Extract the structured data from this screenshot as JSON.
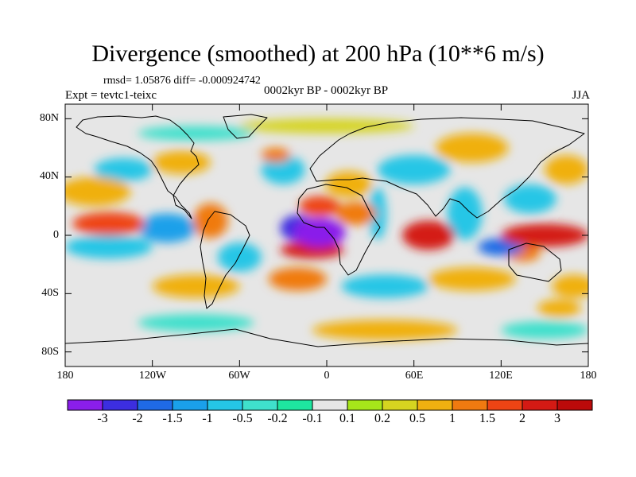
{
  "figure": {
    "title": "Divergence (smoothed) at 200 hPa (10**6 m/s)",
    "stats": "rmsd= 1.05876 diff= -0.000924742",
    "experiment": "Expt = tevtc1-teixc",
    "period": "0002kyr BP - 0002kyr BP",
    "season": "JJA"
  },
  "axes": {
    "lat_labels": [
      "80N",
      "40N",
      "0",
      "40S",
      "80S"
    ],
    "lat_values": [
      80,
      40,
      0,
      -40,
      -80
    ],
    "lon_labels": [
      "180",
      "120W",
      "60W",
      "0",
      "60E",
      "120E",
      "180"
    ],
    "lon_values": [
      -180,
      -120,
      -60,
      0,
      60,
      120,
      180
    ]
  },
  "colorbar": {
    "labels": [
      "-3",
      "-2",
      "-1.5",
      "-1",
      "-0.5",
      "-0.2",
      "-0.1",
      "0.1",
      "0.2",
      "0.5",
      "1",
      "1.5",
      "2",
      "3"
    ],
    "colors": [
      "#8a1eea",
      "#3c2ee0",
      "#1f6ae6",
      "#1aa0ea",
      "#25c6e6",
      "#3fe0cc",
      "#1ee6a0",
      "#e6e6e6",
      "#a6e61a",
      "#d6d420",
      "#f0b010",
      "#f07a10",
      "#ee4414",
      "#d41a14",
      "#bb0a0a"
    ]
  },
  "regions": [
    {
      "lon": -5,
      "lat": 2,
      "rx": 18,
      "ry": 10,
      "v": -3.2
    },
    {
      "lon": -20,
      "lat": 5,
      "rx": 12,
      "ry": 9,
      "v": -2.2
    },
    {
      "lon": -10,
      "lat": -10,
      "rx": 22,
      "ry": 6,
      "v": 2.4
    },
    {
      "lon": -5,
      "lat": 20,
      "rx": 14,
      "ry": 7,
      "v": 1.8
    },
    {
      "lon": 20,
      "lat": 15,
      "rx": 14,
      "ry": 8,
      "v": 1.2
    },
    {
      "lon": 15,
      "lat": 35,
      "rx": 16,
      "ry": 9,
      "v": 0.6
    },
    {
      "lon": 35,
      "lat": 15,
      "rx": 6,
      "ry": 18,
      "v": -0.8
    },
    {
      "lon": 70,
      "lat": 0,
      "rx": 18,
      "ry": 10,
      "v": 2.3
    },
    {
      "lon": 95,
      "lat": 15,
      "rx": 12,
      "ry": 18,
      "v": -0.9
    },
    {
      "lon": 120,
      "lat": -8,
      "rx": 16,
      "ry": 6,
      "v": -2.0
    },
    {
      "lon": 150,
      "lat": 0,
      "rx": 30,
      "ry": 8,
      "v": 2.2
    },
    {
      "lon": 135,
      "lat": -12,
      "rx": 12,
      "ry": 6,
      "v": 1.3
    },
    {
      "lon": 140,
      "lat": 25,
      "rx": 18,
      "ry": 10,
      "v": -0.8
    },
    {
      "lon": -150,
      "lat": 8,
      "rx": 25,
      "ry": 8,
      "v": 1.5
    },
    {
      "lon": -150,
      "lat": -8,
      "rx": 30,
      "ry": 8,
      "v": -0.9
    },
    {
      "lon": -110,
      "lat": 5,
      "rx": 20,
      "ry": 10,
      "v": -1.1
    },
    {
      "lon": -80,
      "lat": 10,
      "rx": 12,
      "ry": 12,
      "v": 1.1
    },
    {
      "lon": -60,
      "lat": -15,
      "rx": 15,
      "ry": 10,
      "v": -0.8
    },
    {
      "lon": -90,
      "lat": -35,
      "rx": 30,
      "ry": 8,
      "v": 0.7
    },
    {
      "lon": -20,
      "lat": -30,
      "rx": 20,
      "ry": 8,
      "v": 1.1
    },
    {
      "lon": 40,
      "lat": -35,
      "rx": 30,
      "ry": 8,
      "v": -0.6
    },
    {
      "lon": 100,
      "lat": -30,
      "rx": 30,
      "ry": 8,
      "v": 0.8
    },
    {
      "lon": 170,
      "lat": -35,
      "rx": 15,
      "ry": 8,
      "v": 0.7
    },
    {
      "lon": -160,
      "lat": 30,
      "rx": 25,
      "ry": 10,
      "v": 0.7
    },
    {
      "lon": -140,
      "lat": 45,
      "rx": 20,
      "ry": 8,
      "v": -0.6
    },
    {
      "lon": -100,
      "lat": 50,
      "rx": 20,
      "ry": 8,
      "v": 0.6
    },
    {
      "lon": -30,
      "lat": 45,
      "rx": 15,
      "ry": 10,
      "v": -0.8
    },
    {
      "lon": -35,
      "lat": 55,
      "rx": 10,
      "ry": 5,
      "v": 1.0
    },
    {
      "lon": 60,
      "lat": 45,
      "rx": 25,
      "ry": 10,
      "v": -0.7
    },
    {
      "lon": 100,
      "lat": 60,
      "rx": 25,
      "ry": 10,
      "v": 0.6
    },
    {
      "lon": 165,
      "lat": 45,
      "rx": 15,
      "ry": 10,
      "v": 0.7
    },
    {
      "lon": 0,
      "lat": 75,
      "rx": 60,
      "ry": 5,
      "v": 0.3
    },
    {
      "lon": -90,
      "lat": 70,
      "rx": 40,
      "ry": 5,
      "v": -0.3
    },
    {
      "lon": 40,
      "lat": -65,
      "rx": 50,
      "ry": 7,
      "v": 0.5
    },
    {
      "lon": -90,
      "lat": -60,
      "rx": 40,
      "ry": 6,
      "v": -0.4
    },
    {
      "lon": 150,
      "lat": -65,
      "rx": 30,
      "ry": 6,
      "v": -0.4
    },
    {
      "lon": 160,
      "lat": -50,
      "rx": 15,
      "ry": 6,
      "v": 0.9
    }
  ]
}
